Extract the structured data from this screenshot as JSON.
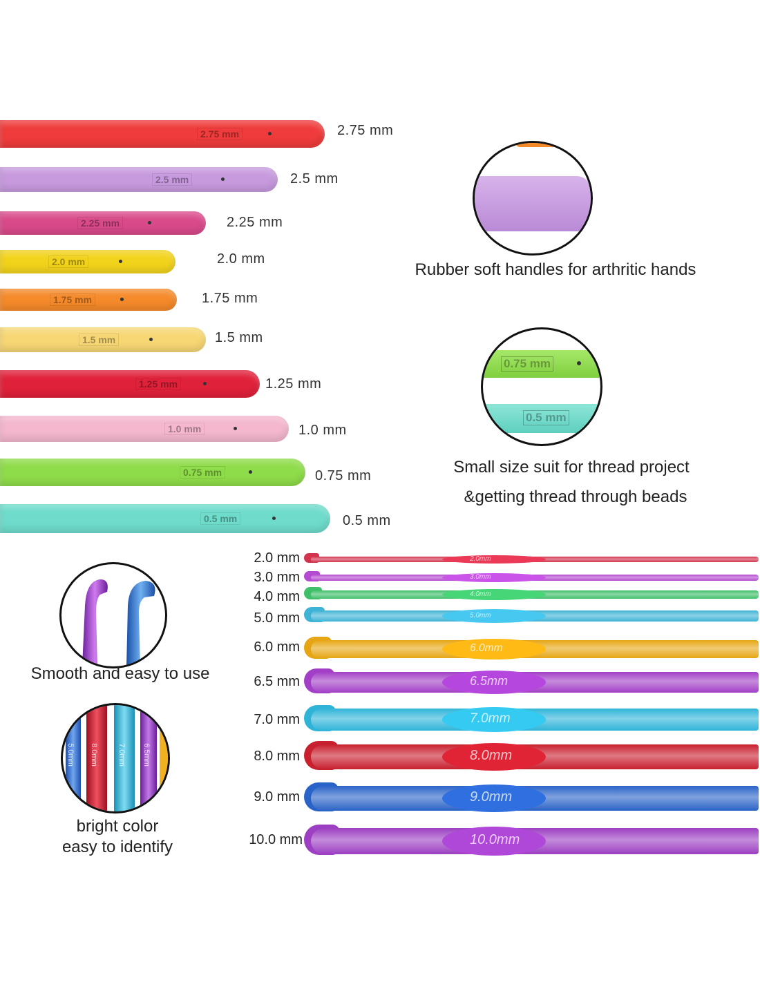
{
  "rubber_hooks": [
    {
      "label": "2.75 mm",
      "emboss": "2.75 mm",
      "color": "#ef3b3b"
    },
    {
      "label": "2.5 mm",
      "emboss": "2.5 mm",
      "color": "#c79ade"
    },
    {
      "label": "2.25 mm",
      "emboss": "2.25 mm",
      "color": "#d94a8a"
    },
    {
      "label": "2.0 mm",
      "emboss": "2.0 mm",
      "color": "#f2d31c"
    },
    {
      "label": "1.75 mm",
      "emboss": "1.75 mm",
      "color": "#f58a2a"
    },
    {
      "label": "1.5 mm",
      "emboss": "1.5 mm",
      "color": "#f7d774"
    },
    {
      "label": "1.25 mm",
      "emboss": "1.25 mm",
      "color": "#e0213a"
    },
    {
      "label": "1.0 mm",
      "emboss": "1.0 mm",
      "color": "#f4b7cd"
    },
    {
      "label": "0.75 mm",
      "emboss": "0.75 mm",
      "color": "#8fdc4a"
    },
    {
      "label": "0.5 mm",
      "emboss": "0.5 mm",
      "color": "#6fdccb"
    }
  ],
  "features": {
    "rubber": "Rubber soft handles for arthritic hands",
    "small_line1": "Small size suit for thread project",
    "small_line2": "&getting thread through beads",
    "smooth": "Smooth and easy to use",
    "bright_line1": "bright color",
    "bright_line2": "easy to identify"
  },
  "circle_embosses": {
    "green": "0.75 mm",
    "teal": "0.5 mm"
  },
  "bright_circle_labels": [
    "5.0mm",
    "8.0mm",
    "7.0mm",
    "6.5mm"
  ],
  "aluminum_hooks": [
    {
      "label": "2.0 mm",
      "emboss": "2.0mm",
      "color": "#d2344e"
    },
    {
      "label": "3.0 mm",
      "emboss": "3.0mm",
      "color": "#b44ad0"
    },
    {
      "label": "4.0 mm",
      "emboss": "4.0mm",
      "color": "#3fbf6a"
    },
    {
      "label": "5.0 mm",
      "emboss": "5.0mm",
      "color": "#3fb3d6"
    },
    {
      "label": "6.0 mm",
      "emboss": "6.0mm",
      "color": "#e6a614"
    },
    {
      "label": "6.5 mm",
      "emboss": "6.5mm",
      "color": "#a23fc6"
    },
    {
      "label": "7.0 mm",
      "emboss": "7.0mm",
      "color": "#2fb4d8"
    },
    {
      "label": "8.0 mm",
      "emboss": "8.0mm",
      "color": "#c8202f"
    },
    {
      "label": "9.0 mm",
      "emboss": "9.0mm",
      "color": "#2a63c7"
    },
    {
      "label": "10.0 mm",
      "emboss": "10.0mm",
      "color": "#9c3fc2"
    }
  ]
}
